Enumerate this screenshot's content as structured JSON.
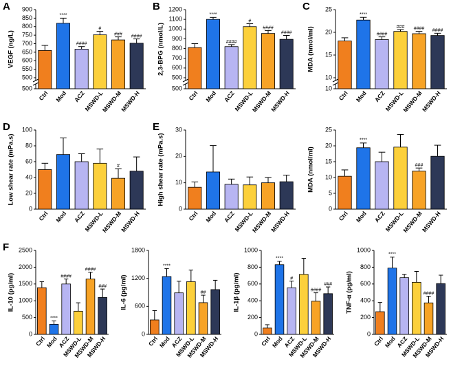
{
  "chart_data": [
    {
      "type": "bar",
      "title": "A",
      "y_label": "VEGF (ng/L)",
      "broken_axis_low_tick": 500,
      "categories": [
        "Ctrl",
        "Mod",
        "ACZ",
        "MSWD-L",
        "MSWD-M",
        "MSWD-H"
      ],
      "values": [
        660,
        820,
        668,
        752,
        722,
        703
      ],
      "errors": [
        30,
        30,
        15,
        20,
        18,
        25
      ],
      "annotations": [
        null,
        "****",
        "####",
        "#",
        "###",
        "####"
      ],
      "colors": [
        "#f07f1e",
        "#1f74e8",
        "#b7b5f2",
        "#fcd03b",
        "#f7a326",
        "#2d3857"
      ],
      "ylim": [
        500,
        900
      ],
      "yticks": [
        500,
        550,
        600,
        650,
        700,
        750,
        800,
        850,
        900
      ]
    },
    {
      "type": "bar",
      "title": "B",
      "y_label": "2,3-BPG (nmol/L)",
      "broken_axis_low_tick": 500,
      "categories": [
        "Ctrl",
        "Mod",
        "ACZ",
        "MSWD-L",
        "MSWD-M",
        "MSWD-H"
      ],
      "values": [
        810,
        1100,
        820,
        1025,
        955,
        895
      ],
      "errors": [
        40,
        20,
        20,
        30,
        30,
        40
      ],
      "annotations": [
        null,
        "****",
        "####",
        "#",
        "####",
        "####"
      ],
      "colors": [
        "#f07f1e",
        "#1f74e8",
        "#b7b5f2",
        "#fcd03b",
        "#f7a326",
        "#2d3857"
      ],
      "ylim": [
        500,
        1200
      ],
      "yticks": [
        500,
        600,
        700,
        800,
        900,
        1000,
        1100,
        1200
      ]
    },
    {
      "type": "bar",
      "title": "C",
      "y_label": "MDA (nmol/ml)",
      "broken_axis_low_tick": 10,
      "categories": [
        "Ctrl",
        "Mod",
        "ACZ",
        "MSWD-L",
        "MSWD-M",
        "MSWD-H"
      ],
      "values": [
        18.1,
        22.7,
        18.4,
        20.2,
        19.7,
        19.3
      ],
      "errors": [
        0.7,
        0.6,
        0.6,
        0.4,
        0.5,
        0.5
      ],
      "annotations": [
        null,
        "****",
        "####",
        "###",
        "####",
        "####"
      ],
      "colors": [
        "#f07f1e",
        "#1f74e8",
        "#b7b5f2",
        "#fcd03b",
        "#f7a326",
        "#2d3857"
      ],
      "ylim": [
        10,
        25
      ],
      "yticks": [
        10,
        15,
        20,
        25
      ]
    },
    {
      "type": "bar",
      "title": "D",
      "y_label": "Low shear rate (mPa.s)",
      "categories": [
        "Ctrl",
        "Mod",
        "ACZ",
        "MSWD-L",
        "MSWD-M",
        "MSWD-H"
      ],
      "values": [
        50,
        69,
        60,
        58,
        39,
        48
      ],
      "errors": [
        8,
        21,
        10,
        18,
        12,
        18
      ],
      "annotations": [
        null,
        null,
        null,
        null,
        "#",
        null
      ],
      "colors": [
        "#f07f1e",
        "#1f74e8",
        "#b7b5f2",
        "#fcd03b",
        "#f7a326",
        "#2d3857"
      ],
      "ylim": [
        0,
        100
      ],
      "yticks": [
        0,
        20,
        40,
        60,
        80,
        100
      ]
    },
    {
      "type": "bar",
      "title": "E",
      "y_label": "High shear rate (mPa.s)",
      "categories": [
        "Ctrl",
        "Mod",
        "ACZ",
        "MSWD-L",
        "MSWD-M",
        "MSWD-H"
      ],
      "values": [
        8.3,
        14.1,
        9.4,
        9.2,
        10,
        10.4
      ],
      "errors": [
        2,
        10,
        2,
        3,
        2,
        2.5
      ],
      "annotations": [
        null,
        null,
        null,
        null,
        null,
        null
      ],
      "colors": [
        "#f07f1e",
        "#1f74e8",
        "#b7b5f2",
        "#fcd03b",
        "#f7a326",
        "#2d3857"
      ],
      "ylim": [
        0,
        30
      ],
      "yticks": [
        0,
        10,
        20,
        30
      ]
    },
    {
      "type": "bar",
      "y_label": "MDA (nmol/ml)",
      "categories": [
        "Ctrl",
        "Mod",
        "ACZ",
        "MSWD-L",
        "MSWD-M",
        "MSWD-H"
      ],
      "values": [
        10.4,
        19.4,
        15,
        19.6,
        12,
        16.7
      ],
      "errors": [
        2,
        1.5,
        3,
        4,
        1,
        3.5
      ],
      "annotations": [
        null,
        "****",
        null,
        null,
        "###",
        null
      ],
      "colors": [
        "#f07f1e",
        "#1f74e8",
        "#b7b5f2",
        "#fcd03b",
        "#f7a326",
        "#2d3857"
      ],
      "ylim": [
        0,
        25
      ],
      "yticks": [
        0,
        5,
        10,
        15,
        20,
        25
      ]
    },
    {
      "type": "bar",
      "title": "F",
      "y_label": "IL-10 (pg/ml)",
      "categories": [
        "Ctrl",
        "Mod",
        "ACZ",
        "MSWD-L",
        "MSWD-M",
        "MSWD-H"
      ],
      "values": [
        1390,
        300,
        1500,
        690,
        1650,
        1100
      ],
      "errors": [
        180,
        100,
        150,
        250,
        200,
        250
      ],
      "annotations": [
        null,
        "****",
        "####",
        null,
        "####",
        "###"
      ],
      "colors": [
        "#f07f1e",
        "#1f74e8",
        "#b7b5f2",
        "#fcd03b",
        "#f7a326",
        "#2d3857"
      ],
      "ylim": [
        0,
        2500
      ],
      "yticks": [
        0,
        500,
        1000,
        1500,
        2000,
        2500
      ]
    },
    {
      "type": "bar",
      "y_label": "IL-6 (pg/ml)",
      "categories": [
        "Ctrl",
        "Mod",
        "ACZ",
        "MSWD-L",
        "MSWD-M",
        "MSWD-H"
      ],
      "values": [
        310,
        1240,
        890,
        1130,
        680,
        960
      ],
      "errors": [
        200,
        170,
        250,
        250,
        160,
        200
      ],
      "annotations": [
        null,
        "****",
        null,
        null,
        "##",
        null
      ],
      "colors": [
        "#f07f1e",
        "#1f74e8",
        "#b7b5f2",
        "#fcd03b",
        "#f7a326",
        "#2d3857"
      ],
      "ylim": [
        0,
        1800
      ],
      "yticks": [
        0,
        600,
        1200,
        1800
      ]
    },
    {
      "type": "bar",
      "y_label": "IL-1β (pg/ml)",
      "categories": [
        "Ctrl",
        "Mod",
        "ACZ",
        "MSWD-L",
        "MSWD-M",
        "MSWD-H"
      ],
      "values": [
        75,
        830,
        555,
        715,
        395,
        485
      ],
      "errors": [
        40,
        40,
        80,
        190,
        100,
        80
      ],
      "annotations": [
        null,
        "****",
        "#",
        null,
        "####",
        "###"
      ],
      "colors": [
        "#f07f1e",
        "#1f74e8",
        "#b7b5f2",
        "#fcd03b",
        "#f7a326",
        "#2d3857"
      ],
      "ylim": [
        0,
        1000
      ],
      "yticks": [
        0,
        200,
        400,
        600,
        800,
        1000
      ]
    },
    {
      "type": "bar",
      "y_label": "TNF-α (pg/ml)",
      "categories": [
        "Ctrl",
        "Mod",
        "ACZ",
        "MSWD-L",
        "MSWD-M",
        "MSWD-H"
      ],
      "values": [
        270,
        790,
        675,
        620,
        375,
        605
      ],
      "errors": [
        110,
        130,
        40,
        130,
        80,
        100
      ],
      "annotations": [
        null,
        "****",
        null,
        null,
        "####",
        null
      ],
      "colors": [
        "#f07f1e",
        "#1f74e8",
        "#b7b5f2",
        "#fcd03b",
        "#f7a326",
        "#2d3857"
      ],
      "ylim": [
        0,
        1000
      ],
      "yticks": [
        0,
        200,
        400,
        600,
        800,
        1000
      ]
    }
  ]
}
